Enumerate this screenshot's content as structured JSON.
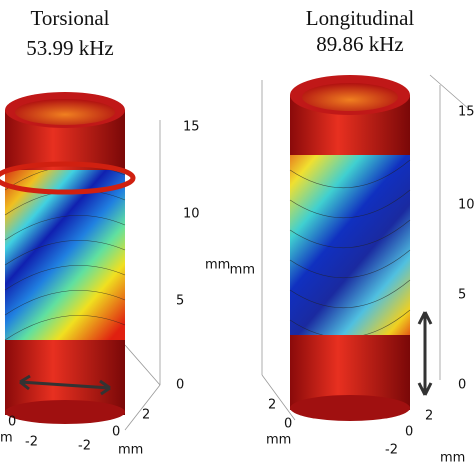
{
  "panels": [
    {
      "title": "Torsional",
      "frequency": "53.99 kHz",
      "z_ticks": [
        "15",
        "10",
        "5",
        "0"
      ],
      "z_unit": "mm",
      "x_ticks": [
        "2",
        "0",
        "-2"
      ],
      "x_unit": "mm",
      "y_ticks": [
        "-2",
        "0"
      ],
      "y_unit": "m"
    },
    {
      "title": "Longitudinal",
      "frequency": "89.86 kHz",
      "z_ticks": [
        "15",
        "10",
        "5",
        "0"
      ],
      "z_unit": "mm",
      "x_ticks": [
        "2",
        "0",
        "-2"
      ],
      "x_unit": "mm",
      "y_ticks": [
        "2",
        "0"
      ],
      "y_unit": "mm"
    }
  ]
}
